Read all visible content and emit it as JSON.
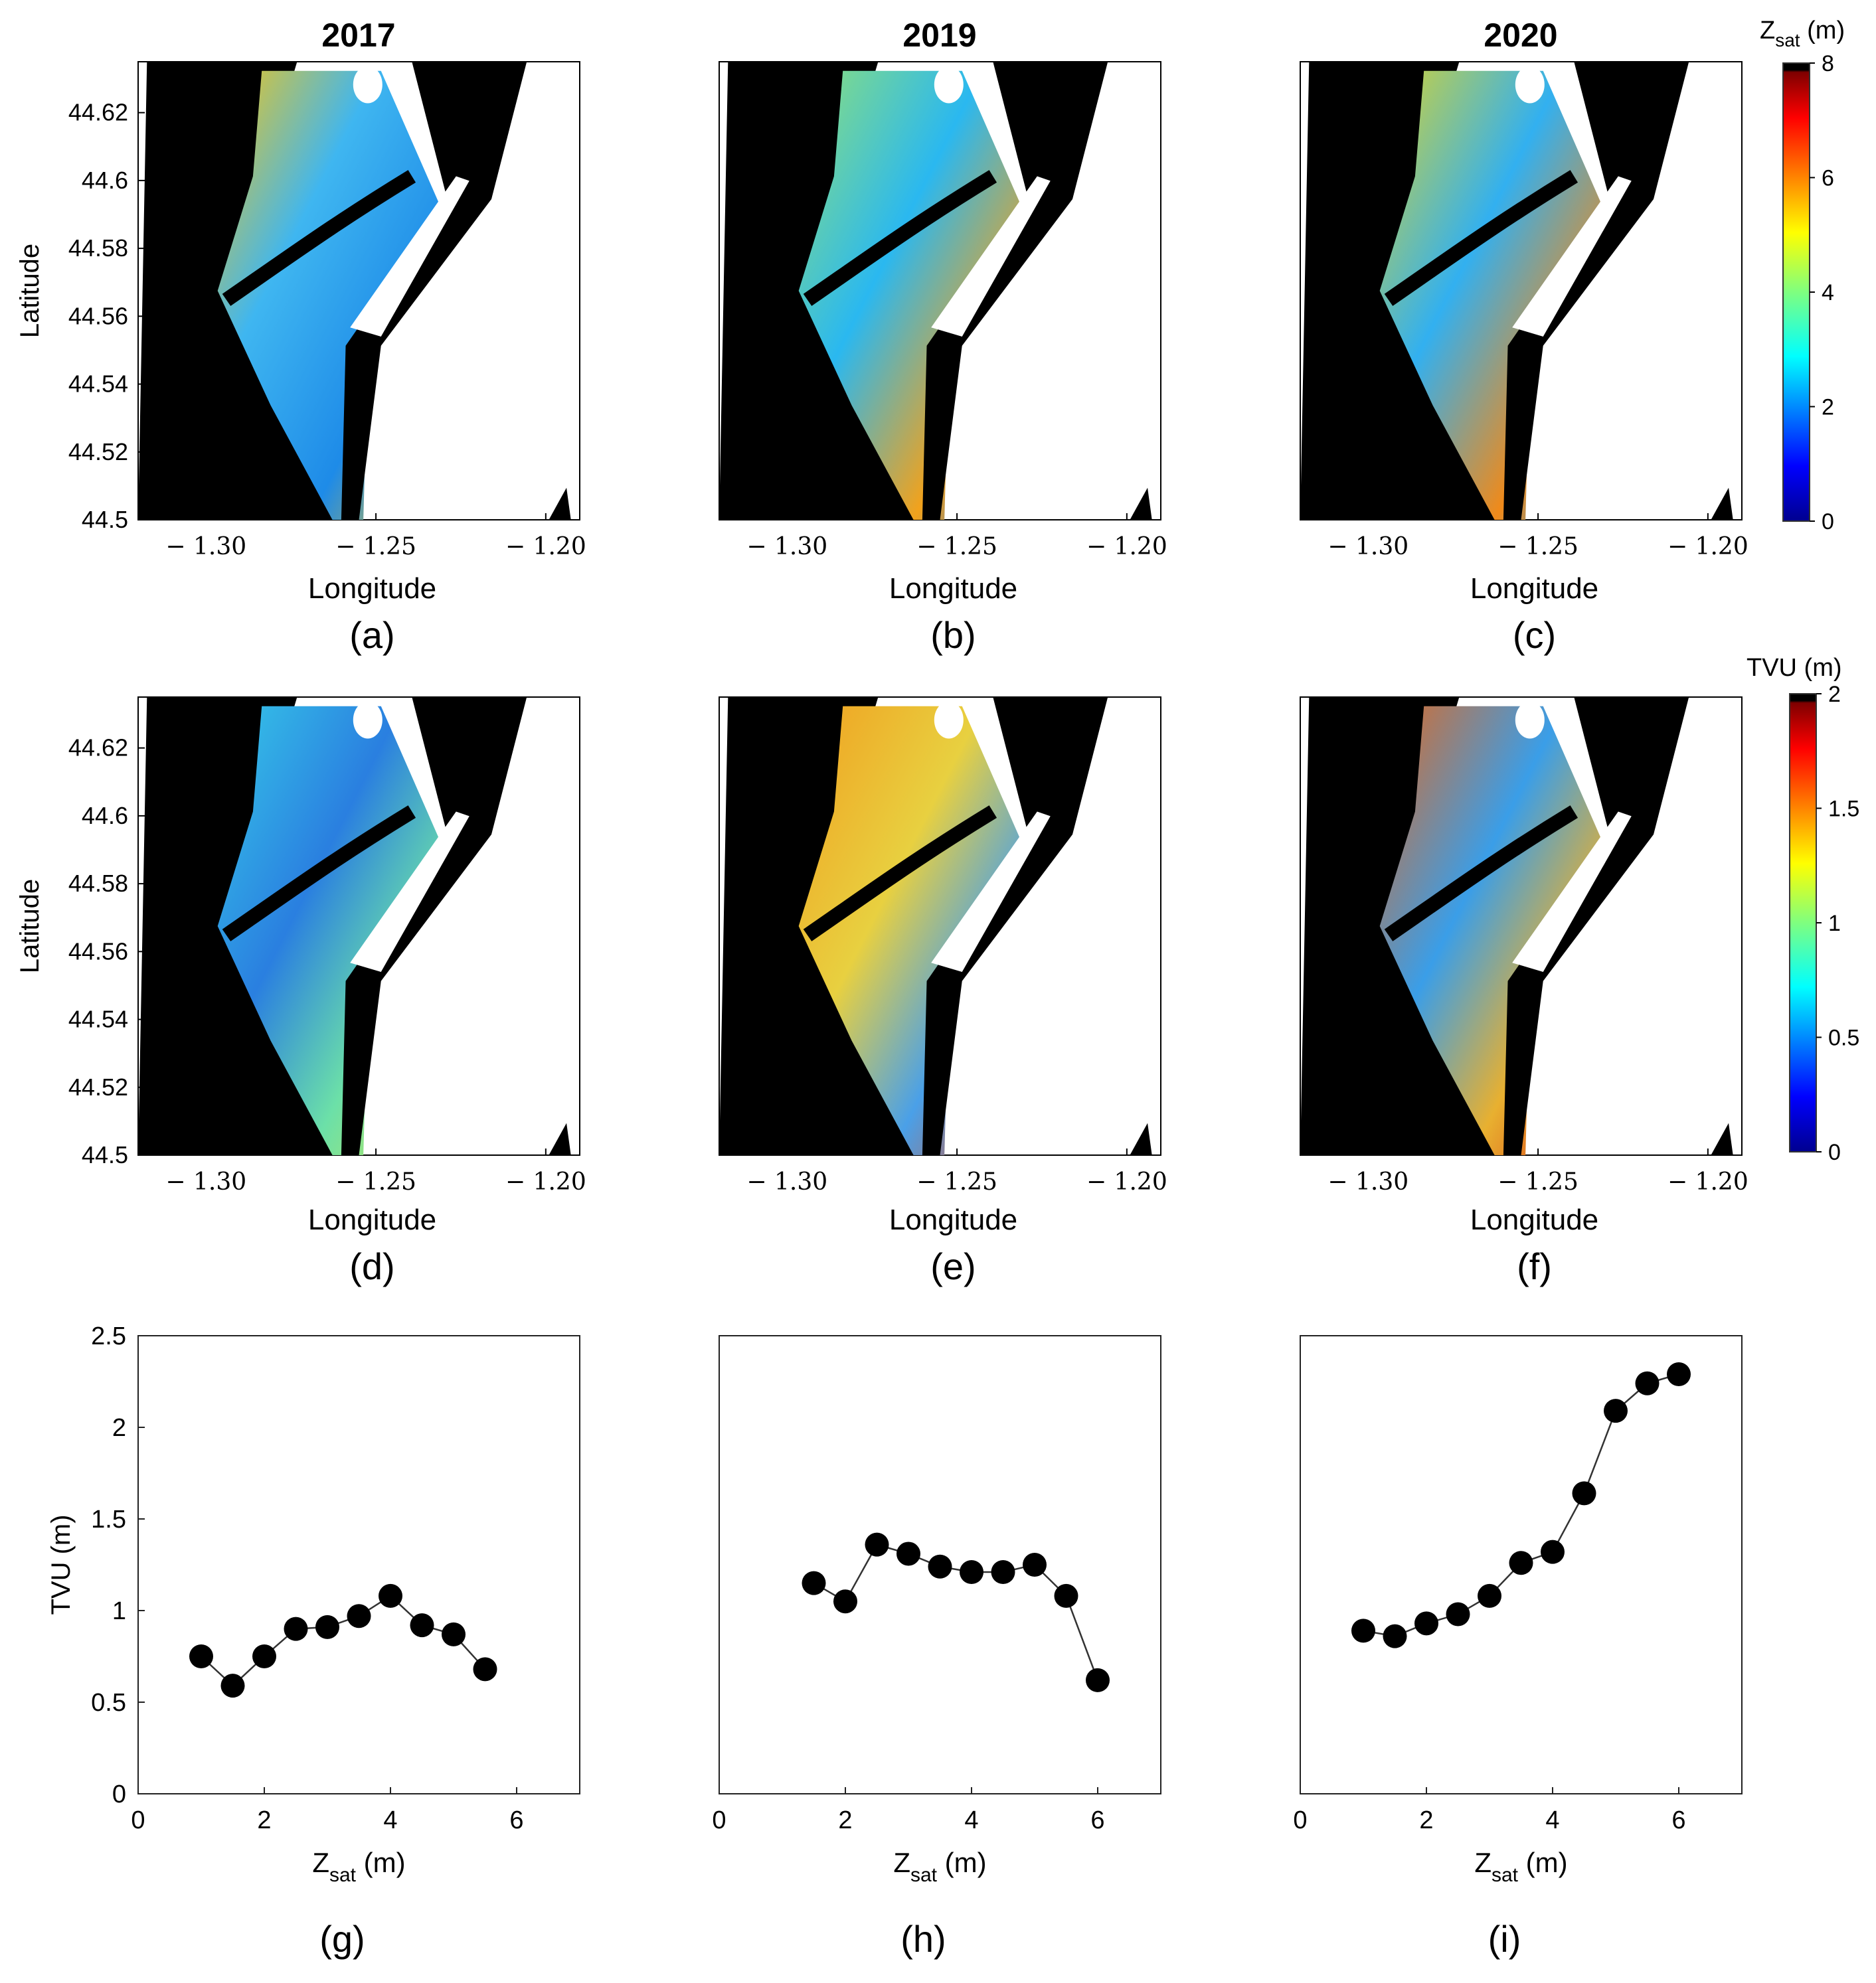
{
  "columns": [
    "2017",
    "2019",
    "2020"
  ],
  "panel_letters": [
    "(a)",
    "(b)",
    "(c)",
    "(d)",
    "(e)",
    "(f)",
    "(g)",
    "(h)",
    "(i)"
  ],
  "colors": {
    "land": "#000000",
    "background": "#ffffff",
    "marker": "#000000",
    "colormap_jet": [
      "#00008f",
      "#0000ff",
      "#007fff",
      "#00ffff",
      "#7fff7f",
      "#ffff00",
      "#ff7f00",
      "#ff0000",
      "#7f0000"
    ],
    "cap": "#000000"
  },
  "maps": {
    "xlabel": "Longitude",
    "ylabel": "Latitude",
    "lon_range": [
      -1.32,
      -1.19
    ],
    "lat_range": [
      44.5,
      44.635
    ],
    "lon_ticks": [
      -1.3,
      -1.25,
      -1.2
    ],
    "lon_tick_labels": [
      "− 1.30",
      "− 1.25",
      "− 1.20"
    ],
    "lat_ticks": [
      44.62,
      44.6,
      44.58,
      44.56,
      44.54,
      44.52,
      44.5
    ],
    "lat_tick_labels": [
      "44.62",
      "44.6",
      "44.58",
      "44.56",
      "44.54",
      "44.52",
      "44.5"
    ]
  },
  "colorbars": [
    {
      "label_main": "Z",
      "label_sub": "sat",
      "label_unit": " (m)",
      "range": [
        0,
        8
      ],
      "ticks": [
        0,
        2,
        4,
        6,
        8
      ]
    },
    {
      "label_main": "TVU (m)",
      "label_sub": "",
      "label_unit": "",
      "range": [
        0,
        2
      ],
      "ticks": [
        0,
        0.5,
        1,
        1.5,
        2
      ]
    }
  ],
  "chart_data": [
    {
      "type": "line",
      "panel": "(g)",
      "year": "2017",
      "x": [
        1,
        1.5,
        2,
        2.5,
        3,
        3.5,
        4,
        4.5,
        5,
        5.5
      ],
      "y": [
        0.75,
        0.59,
        0.75,
        0.9,
        0.91,
        0.97,
        1.08,
        0.92,
        0.87,
        0.68
      ],
      "xlabel_main": "Z",
      "xlabel_sub": "sat",
      "xlabel_unit": " (m)",
      "ylabel": "TVU (m)",
      "xlim": [
        0,
        7
      ],
      "ylim": [
        0,
        2.5
      ],
      "xticks": [
        0,
        2,
        4,
        6
      ],
      "yticks": [
        0,
        0.5,
        1,
        1.5,
        2,
        2.5
      ]
    },
    {
      "type": "line",
      "panel": "(h)",
      "year": "2019",
      "x": [
        1.5,
        2,
        2.5,
        3,
        3.5,
        4,
        4.5,
        5,
        5.5,
        6
      ],
      "y": [
        1.15,
        1.05,
        1.36,
        1.31,
        1.24,
        1.21,
        1.21,
        1.25,
        1.08,
        0.62
      ],
      "xlabel_main": "Z",
      "xlabel_sub": "sat",
      "xlabel_unit": " (m)",
      "ylabel": "",
      "xlim": [
        0,
        7
      ],
      "ylim": [
        0,
        2.5
      ],
      "xticks": [
        0,
        2,
        4,
        6
      ],
      "yticks": []
    },
    {
      "type": "line",
      "panel": "(i)",
      "year": "2020",
      "x": [
        1,
        1.5,
        2,
        2.5,
        3,
        3.5,
        4,
        4.5,
        5,
        5.5,
        6
      ],
      "y": [
        0.89,
        0.86,
        0.93,
        0.98,
        1.08,
        1.26,
        1.32,
        1.64,
        2.09,
        2.24,
        2.29
      ],
      "xlabel_main": "Z",
      "xlabel_sub": "sat",
      "xlabel_unit": " (m)",
      "ylabel": "",
      "xlim": [
        0,
        7
      ],
      "ylim": [
        0,
        2.5
      ],
      "xticks": [
        0,
        2,
        4,
        6
      ],
      "yticks": []
    }
  ]
}
